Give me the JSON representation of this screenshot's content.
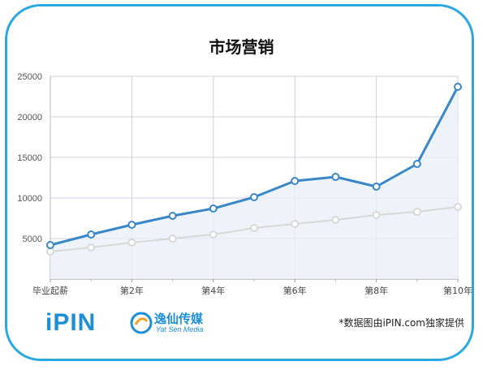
{
  "page": {
    "title": "市场营销",
    "credit": "*数据图由iPIN.com独家提供",
    "brand_ipin": "iPIN",
    "brand_media_cn": "逸仙传媒",
    "brand_media_en": "Yat Sen Media"
  },
  "colors": {
    "border": "#2ba8e0",
    "series_main": "#3a87c8",
    "series_secondary": "#d8d8d8",
    "area_fill": "#e8f0f8",
    "grid": "#d9cde0"
  },
  "chart_data": {
    "type": "area",
    "title": "市场营销",
    "x_tick_labels": [
      "毕业起薪",
      "第2年",
      "第4年",
      "第6年",
      "第8年",
      "第10年"
    ],
    "x": [
      0,
      1,
      2,
      3,
      4,
      5,
      6,
      7,
      8,
      9,
      10
    ],
    "ylim": [
      0,
      25000
    ],
    "y_ticks": [
      5000,
      10000,
      15000,
      20000,
      25000
    ],
    "grid": true,
    "series": [
      {
        "values": [
          4200,
          5500,
          6700,
          7800,
          8700,
          10100,
          12100,
          12600,
          11400,
          14200,
          23700
        ]
      },
      {
        "values": [
          3400,
          3900,
          4500,
          5000,
          5500,
          6300,
          6800,
          7300,
          7900,
          8300,
          8900
        ]
      }
    ]
  }
}
